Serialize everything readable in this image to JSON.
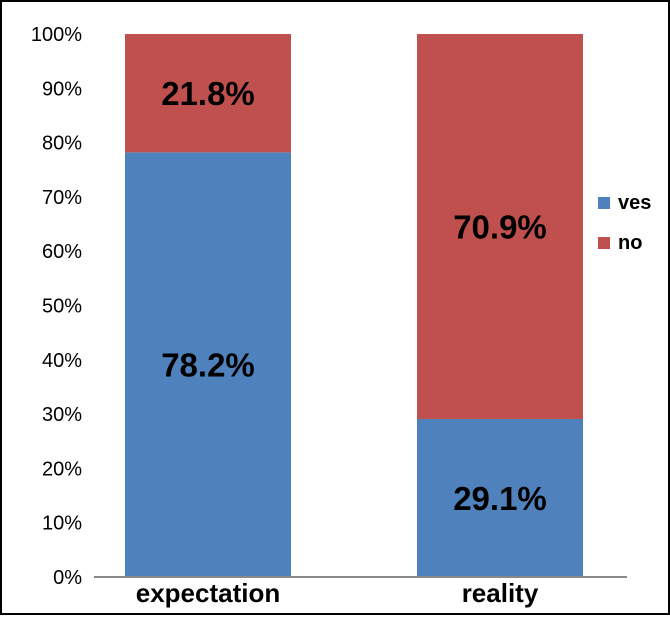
{
  "chart_data": {
    "type": "bar",
    "stacked": true,
    "percent_stacked": true,
    "categories": [
      "expectation",
      "reality"
    ],
    "series": [
      {
        "name": "ves",
        "color": "#4f81bd",
        "values": [
          78.2,
          29.1
        ],
        "labels": [
          "78.2%",
          "29.1%"
        ]
      },
      {
        "name": "no",
        "color": "#c0504d",
        "values": [
          21.8,
          70.9
        ],
        "labels": [
          "21.8%",
          "70.9%"
        ]
      }
    ],
    "yticks": [
      "0%",
      "10%",
      "20%",
      "30%",
      "40%",
      "50%",
      "60%",
      "70%",
      "80%",
      "90%",
      "100%"
    ],
    "ylim": [
      0,
      100
    ],
    "grid": false,
    "legend_position": "right"
  }
}
